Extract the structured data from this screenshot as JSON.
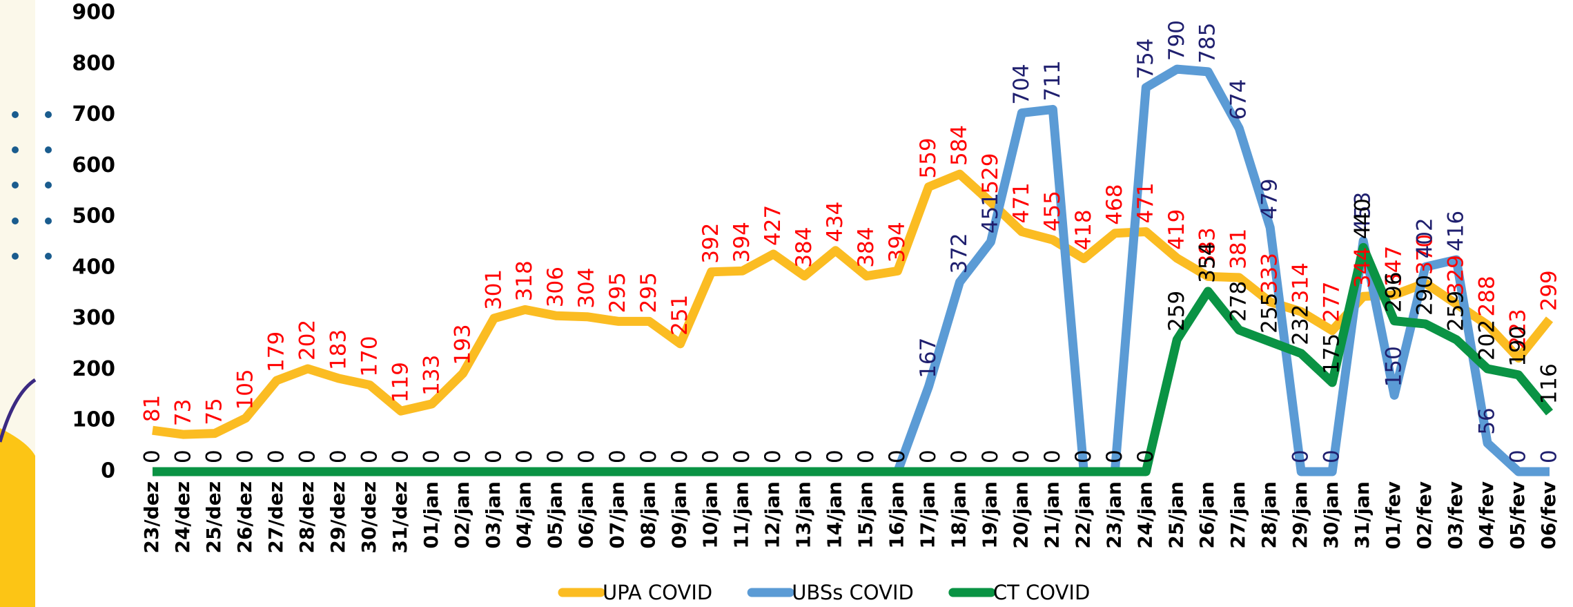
{
  "chart_data": {
    "type": "line",
    "categories": [
      "23/dez",
      "24/dez",
      "25/dez",
      "26/dez",
      "27/dez",
      "28/dez",
      "29/dez",
      "30/dez",
      "31/dez",
      "01/jan",
      "02/jan",
      "03/jan",
      "04/jan",
      "05/jan",
      "06/jan",
      "07/jan",
      "08/jan",
      "09/jan",
      "10/jan",
      "11/jan",
      "12/jan",
      "13/jan",
      "14/jan",
      "15/jan",
      "16/jan",
      "17/jan",
      "18/jan",
      "19/jan",
      "20/jan",
      "21/jan",
      "22/jan",
      "23/jan",
      "24/jan",
      "25/jan",
      "26/jan",
      "27/jan",
      "28/jan",
      "29/jan",
      "30/jan",
      "31/jan",
      "01/fev",
      "02/fev",
      "03/fev",
      "04/fev",
      "05/fev",
      "06/fev"
    ],
    "series": [
      {
        "name": "UPA COVID",
        "color": "#fbbc22",
        "label_color": "#ff0000",
        "values": [
          81,
          73,
          75,
          105,
          179,
          202,
          183,
          170,
          119,
          133,
          193,
          301,
          318,
          306,
          304,
          295,
          295,
          251,
          392,
          394,
          427,
          384,
          434,
          384,
          394,
          559,
          584,
          529,
          471,
          455,
          418,
          468,
          471,
          419,
          383,
          381,
          333,
          314,
          277,
          344,
          347,
          370,
          329,
          288,
          223,
          299
        ]
      },
      {
        "name": "UBSs COVID",
        "color": "#5b9bd5",
        "label_color": "#1f1f6e",
        "values": [
          0,
          0,
          0,
          0,
          0,
          0,
          0,
          0,
          0,
          0,
          0,
          0,
          0,
          0,
          0,
          0,
          0,
          0,
          0,
          0,
          0,
          0,
          0,
          0,
          0,
          167,
          372,
          451,
          704,
          711,
          0,
          0,
          754,
          790,
          785,
          674,
          479,
          0,
          0,
          453,
          150,
          402,
          416,
          56,
          0,
          0
        ]
      },
      {
        "name": "CT COVID",
        "color": "#0a9344",
        "label_color": "#000000",
        "values": [
          0,
          0,
          0,
          0,
          0,
          0,
          0,
          0,
          0,
          0,
          0,
          0,
          0,
          0,
          0,
          0,
          0,
          0,
          0,
          0,
          0,
          0,
          0,
          0,
          0,
          0,
          0,
          0,
          0,
          0,
          0,
          0,
          0,
          259,
          354,
          278,
          255,
          232,
          175,
          440,
          296,
          290,
          259,
          202,
          190,
          116
        ]
      }
    ],
    "ylim": [
      0,
      900
    ],
    "yticks": [
      0,
      100,
      200,
      300,
      400,
      500,
      600,
      700,
      800,
      900
    ]
  }
}
